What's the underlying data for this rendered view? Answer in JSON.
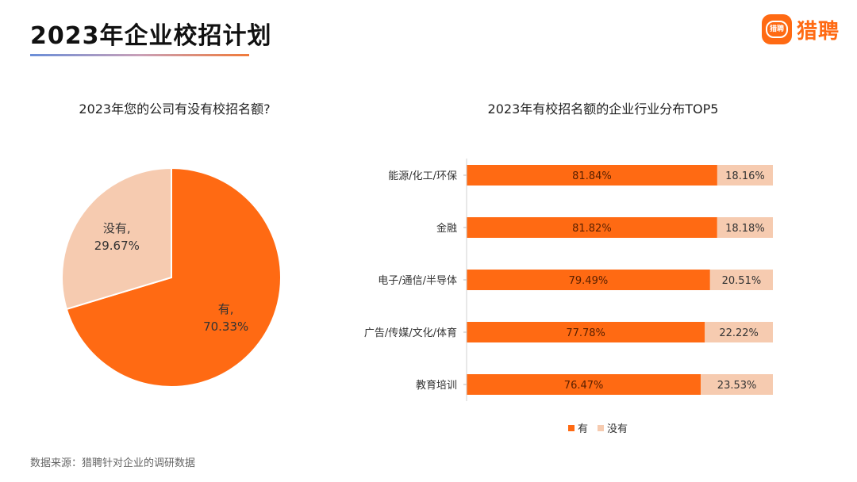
{
  "header": {
    "title": "2023年企业校招计划",
    "brand_name": "猎聘",
    "brand_icon_text": "猎聘"
  },
  "colors": {
    "orange": "#ff6a13",
    "peach": "#f6cbb0"
  },
  "chart_data": [
    {
      "type": "pie",
      "title": "2023年您的公司有没有校招名额?",
      "slices": [
        {
          "label": "有",
          "value": 70.33,
          "display": "70.33%",
          "color": "#ff6a13"
        },
        {
          "label": "没有",
          "value": 29.67,
          "display": "29.67%",
          "color": "#f6cbb0"
        }
      ]
    },
    {
      "type": "bar",
      "orientation": "horizontal",
      "stacked": true,
      "title": "2023年有校招名额的企业行业分布TOP5",
      "categories": [
        "能源/化工/环保",
        "金融",
        "电子/通信/半导体",
        "广告/传媒/文化/体育",
        "教育培训"
      ],
      "series": [
        {
          "name": "有",
          "color": "#ff6a13",
          "values": [
            81.84,
            81.82,
            79.49,
            77.78,
            76.47
          ],
          "labels": [
            "81.84%",
            "81.82%",
            "79.49%",
            "77.78%",
            "76.47%"
          ]
        },
        {
          "name": "没有",
          "color": "#f6cbb0",
          "values": [
            18.16,
            18.18,
            20.51,
            22.22,
            23.53
          ],
          "labels": [
            "18.16%",
            "18.18%",
            "20.51%",
            "22.22%",
            "23.53%"
          ]
        }
      ],
      "xlim": [
        0,
        100
      ],
      "legend": "bottom"
    }
  ],
  "footer": {
    "source": "数据来源：猎聘针对企业的调研数据"
  }
}
